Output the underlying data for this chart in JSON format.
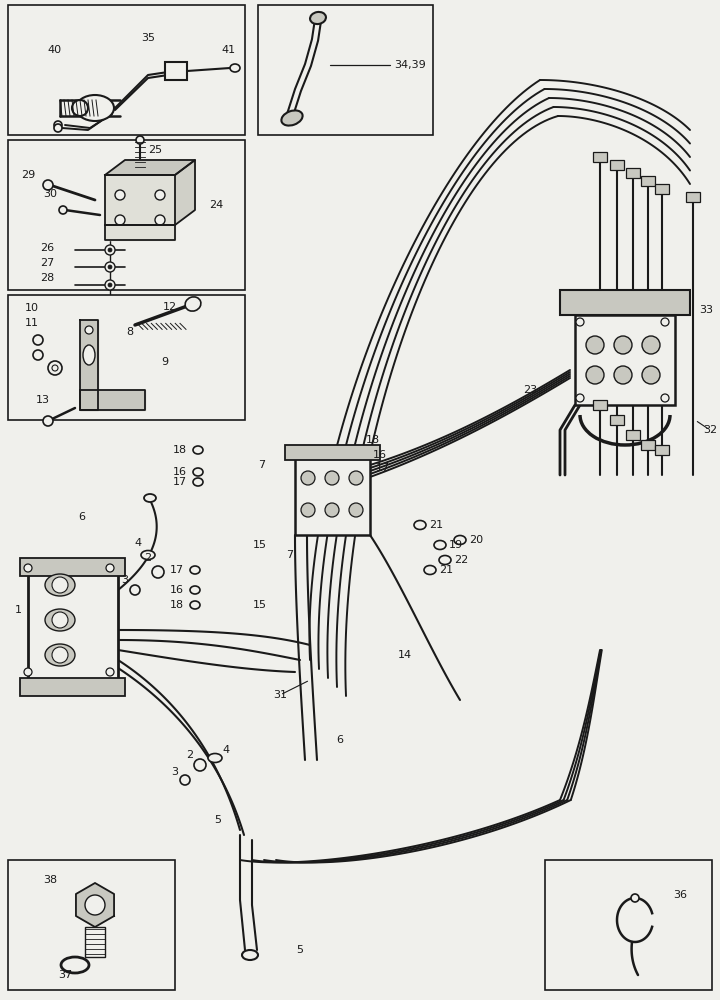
{
  "bg_color": "#f0f0ec",
  "line_color": "#1a1a1a",
  "box_fill": "#f0f0ec",
  "white": "#ffffff",
  "gray": "#c8c8c0",
  "figsize": [
    7.2,
    10.0
  ],
  "dpi": 100
}
